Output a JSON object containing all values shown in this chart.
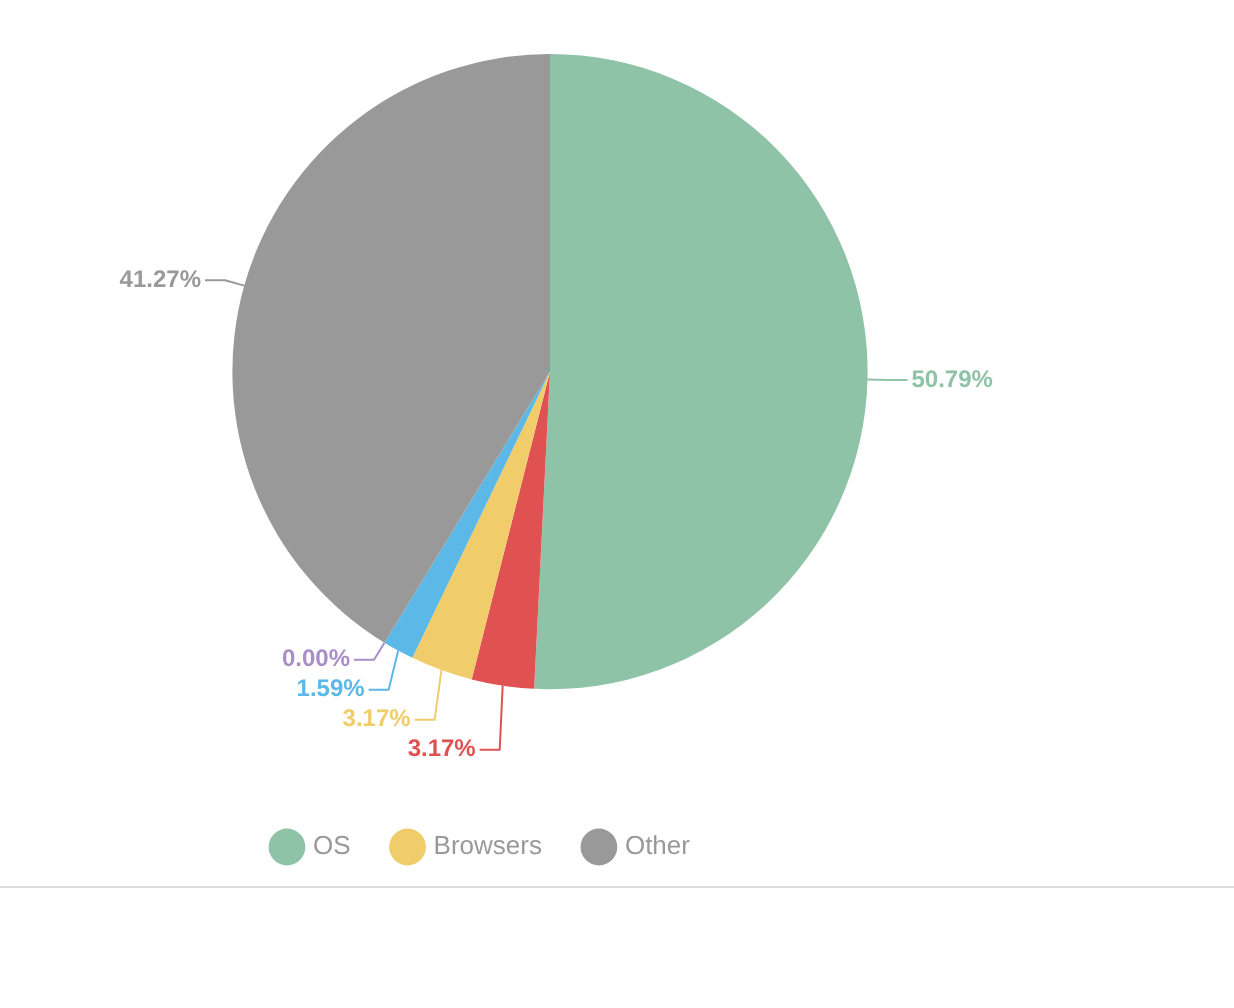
{
  "chart_data": {
    "type": "pie",
    "categories": [
      "OS",
      null,
      "Browsers",
      null,
      null,
      "Other"
    ],
    "values": [
      50.79,
      3.17,
      3.17,
      1.59,
      0.0,
      41.27
    ],
    "colors": [
      "#8fc3a8",
      "#e05252",
      "#f0cc6a",
      "#5cb8e6",
      "#a98fc7",
      "#999999"
    ],
    "value_labels": [
      "50.79%",
      "3.17%",
      "3.17%",
      "1.59%",
      "0.00%",
      "41.27%"
    ],
    "legend": "bottom left"
  }
}
